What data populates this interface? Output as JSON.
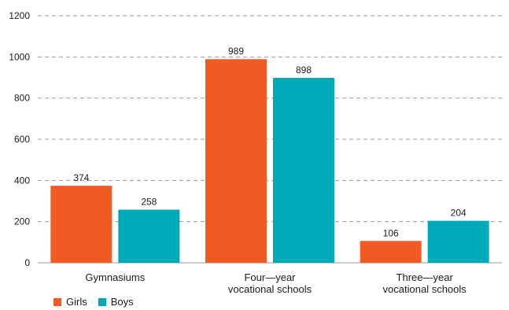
{
  "chart_data": {
    "type": "bar",
    "categories": [
      [
        "Gymnasiums"
      ],
      [
        "Four—year",
        "vocational schools"
      ],
      [
        "Three—year",
        "vocational schools"
      ]
    ],
    "series": [
      {
        "name": "Girls",
        "color": "#f15a22",
        "values": [
          374,
          989,
          106
        ]
      },
      {
        "name": "Boys",
        "color": "#00a9b8",
        "values": [
          258,
          898,
          204
        ]
      }
    ],
    "ylim": [
      0,
      1200
    ],
    "yticks": [
      0,
      200,
      400,
      600,
      800,
      1000,
      1200
    ],
    "grid": true,
    "legend_position": "bottom-left"
  }
}
